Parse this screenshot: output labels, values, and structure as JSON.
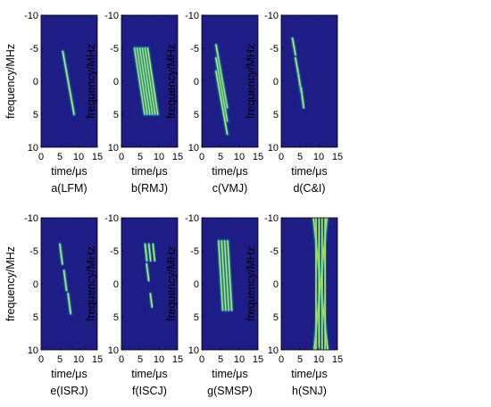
{
  "chart_data": [
    {
      "type": "heatmap",
      "caption": "a(LFM)",
      "xlabel": "time/μs",
      "ylabel": "frequency/MHz",
      "xlim": [
        0,
        15
      ],
      "ylim": [
        -10,
        10
      ],
      "x_ticks": [
        "0",
        "5",
        "10",
        "15"
      ],
      "y_ticks": [
        "-10",
        "-5",
        "0",
        "5",
        "10"
      ],
      "y_reversed": true,
      "strokes": [
        {
          "t0": 5.8,
          "f0": -4.5,
          "t1": 8.8,
          "f1": 5.0
        }
      ]
    },
    {
      "type": "heatmap",
      "caption": "b(RMJ)",
      "xlabel": "time/μs",
      "ylabel": "frequency/MHz",
      "xlim": [
        0,
        15
      ],
      "ylim": [
        -10,
        10
      ],
      "x_ticks": [
        "0",
        "5",
        "10",
        "15"
      ],
      "y_ticks": [
        "-10",
        "-5",
        "0",
        "5",
        "10"
      ],
      "y_reversed": true,
      "strokes": [
        {
          "t0": 3.5,
          "f0": -5.0,
          "t1": 6.2,
          "f1": 5.0
        },
        {
          "t0": 4.2,
          "f0": -5.0,
          "t1": 6.9,
          "f1": 5.0
        },
        {
          "t0": 4.9,
          "f0": -5.0,
          "t1": 7.6,
          "f1": 5.0
        },
        {
          "t0": 5.6,
          "f0": -5.0,
          "t1": 8.3,
          "f1": 5.0
        },
        {
          "t0": 6.3,
          "f0": -5.0,
          "t1": 9.0,
          "f1": 5.0
        },
        {
          "t0": 7.0,
          "f0": -5.0,
          "t1": 9.7,
          "f1": 5.0
        }
      ]
    },
    {
      "type": "heatmap",
      "caption": "c(VMJ)",
      "xlabel": "time/μs",
      "ylabel": "frequency/MHz",
      "xlim": [
        0,
        15
      ],
      "ylim": [
        -10,
        10
      ],
      "x_ticks": [
        "0",
        "5",
        "10",
        "15"
      ],
      "y_ticks": [
        "-10",
        "-5",
        "0",
        "5",
        "10"
      ],
      "y_reversed": true,
      "strokes": [
        {
          "t0": 3.8,
          "f0": -5.5,
          "t1": 6.8,
          "f1": 4.0
        },
        {
          "t0": 3.8,
          "f0": -3.5,
          "t1": 6.8,
          "f1": 6.0
        },
        {
          "t0": 3.8,
          "f0": -1.5,
          "t1": 6.8,
          "f1": 8.0
        }
      ]
    },
    {
      "type": "heatmap",
      "caption": "d(C&I)",
      "xlabel": "time/μs",
      "ylabel": "frequency/MHz",
      "xlim": [
        0,
        15
      ],
      "ylim": [
        -10,
        10
      ],
      "x_ticks": [
        "0",
        "5",
        "10",
        "15"
      ],
      "y_ticks": [
        "-10",
        "-5",
        "0",
        "5",
        "10"
      ],
      "y_reversed": true,
      "strokes": [
        {
          "t0": 3.0,
          "f0": -6.5,
          "t1": 3.8,
          "f1": -4.0
        },
        {
          "t0": 3.8,
          "f0": -3.5,
          "t1": 4.6,
          "f1": -1.0
        },
        {
          "t0": 4.6,
          "f0": -1.0,
          "t1": 5.3,
          "f1": 1.5
        },
        {
          "t0": 5.3,
          "f0": 1.0,
          "t1": 6.0,
          "f1": 4.0
        }
      ]
    },
    {
      "type": "heatmap",
      "caption": "e(ISRJ)",
      "xlabel": "time/μs",
      "ylabel": "frequency/MHz",
      "xlim": [
        0,
        15
      ],
      "ylim": [
        -10,
        10
      ],
      "x_ticks": [
        "0",
        "5",
        "10",
        "15"
      ],
      "y_ticks": [
        "-10",
        "-5",
        "0",
        "5",
        "10"
      ],
      "y_reversed": true,
      "strokes": [
        {
          "t0": 5.0,
          "f0": -6.0,
          "t1": 5.7,
          "f1": -3.0
        },
        {
          "t0": 6.1,
          "f0": -2.0,
          "t1": 6.8,
          "f1": 1.0
        },
        {
          "t0": 7.2,
          "f0": 1.5,
          "t1": 7.9,
          "f1": 4.5
        }
      ]
    },
    {
      "type": "heatmap",
      "caption": "f(ISCJ)",
      "xlabel": "time/μs",
      "ylabel": "frequency/MHz",
      "xlim": [
        0,
        15
      ],
      "ylim": [
        -10,
        10
      ],
      "x_ticks": [
        "0",
        "5",
        "10",
        "15"
      ],
      "y_ticks": [
        "-10",
        "-5",
        "0",
        "5",
        "10"
      ],
      "y_reversed": true,
      "strokes": [
        {
          "t0": 6.3,
          "f0": -6.0,
          "t1": 6.8,
          "f1": -3.5
        },
        {
          "t0": 7.3,
          "f0": -6.0,
          "t1": 7.8,
          "f1": -3.5
        },
        {
          "t0": 8.4,
          "f0": -6.0,
          "t1": 8.9,
          "f1": -3.5
        },
        {
          "t0": 6.7,
          "f0": -3.0,
          "t1": 7.3,
          "f1": -0.5
        },
        {
          "t0": 7.7,
          "f0": 1.5,
          "t1": 8.2,
          "f1": 3.5
        }
      ]
    },
    {
      "type": "heatmap",
      "caption": "g(SMSP)",
      "xlabel": "time/μs",
      "ylabel": "frequency/MHz",
      "xlim": [
        0,
        15
      ],
      "ylim": [
        -10,
        10
      ],
      "x_ticks": [
        "0",
        "5",
        "10",
        "15"
      ],
      "y_ticks": [
        "-10",
        "-5",
        "0",
        "5",
        "10"
      ],
      "y_reversed": true,
      "strokes": [
        {
          "t0": 4.5,
          "f0": -6.5,
          "t1": 5.6,
          "f1": 4.0
        },
        {
          "t0": 5.3,
          "f0": -6.5,
          "t1": 6.4,
          "f1": 4.0
        },
        {
          "t0": 6.1,
          "f0": -6.5,
          "t1": 7.2,
          "f1": 4.0
        },
        {
          "t0": 6.9,
          "f0": -6.5,
          "t1": 8.0,
          "f1": 4.0
        }
      ]
    },
    {
      "type": "heatmap",
      "caption": "h(SNJ)",
      "xlabel": "time/μs",
      "ylabel": "frequency/MHz",
      "xlim": [
        0,
        15
      ],
      "ylim": [
        -10,
        10
      ],
      "x_ticks": [
        "0",
        "5",
        "10",
        "15"
      ],
      "y_ticks": [
        "-10",
        "-5",
        "0",
        "5",
        "10"
      ],
      "y_reversed": true,
      "strokes": [
        {
          "t0": 8.6,
          "f0": -10.0,
          "t1": 12.4,
          "f1": 10.0
        },
        {
          "t0": 12.2,
          "f0": -10.0,
          "t1": 8.8,
          "f1": 10.0
        },
        {
          "t0": 9.3,
          "f0": -10.0,
          "t1": 9.3,
          "f1": 10.0
        },
        {
          "t0": 10.1,
          "f0": -10.0,
          "t1": 10.1,
          "f1": 10.0
        },
        {
          "t0": 10.9,
          "f0": -10.0,
          "t1": 10.9,
          "f1": 10.0
        },
        {
          "t0": 11.7,
          "f0": -10.0,
          "t1": 11.7,
          "f1": 10.0
        }
      ]
    }
  ],
  "colors": {
    "background": "#1d1d85",
    "stroke_outer": "#1f8fd8",
    "stroke_mid": "#2fc3a0",
    "stroke_core": "#e8eb2a"
  }
}
